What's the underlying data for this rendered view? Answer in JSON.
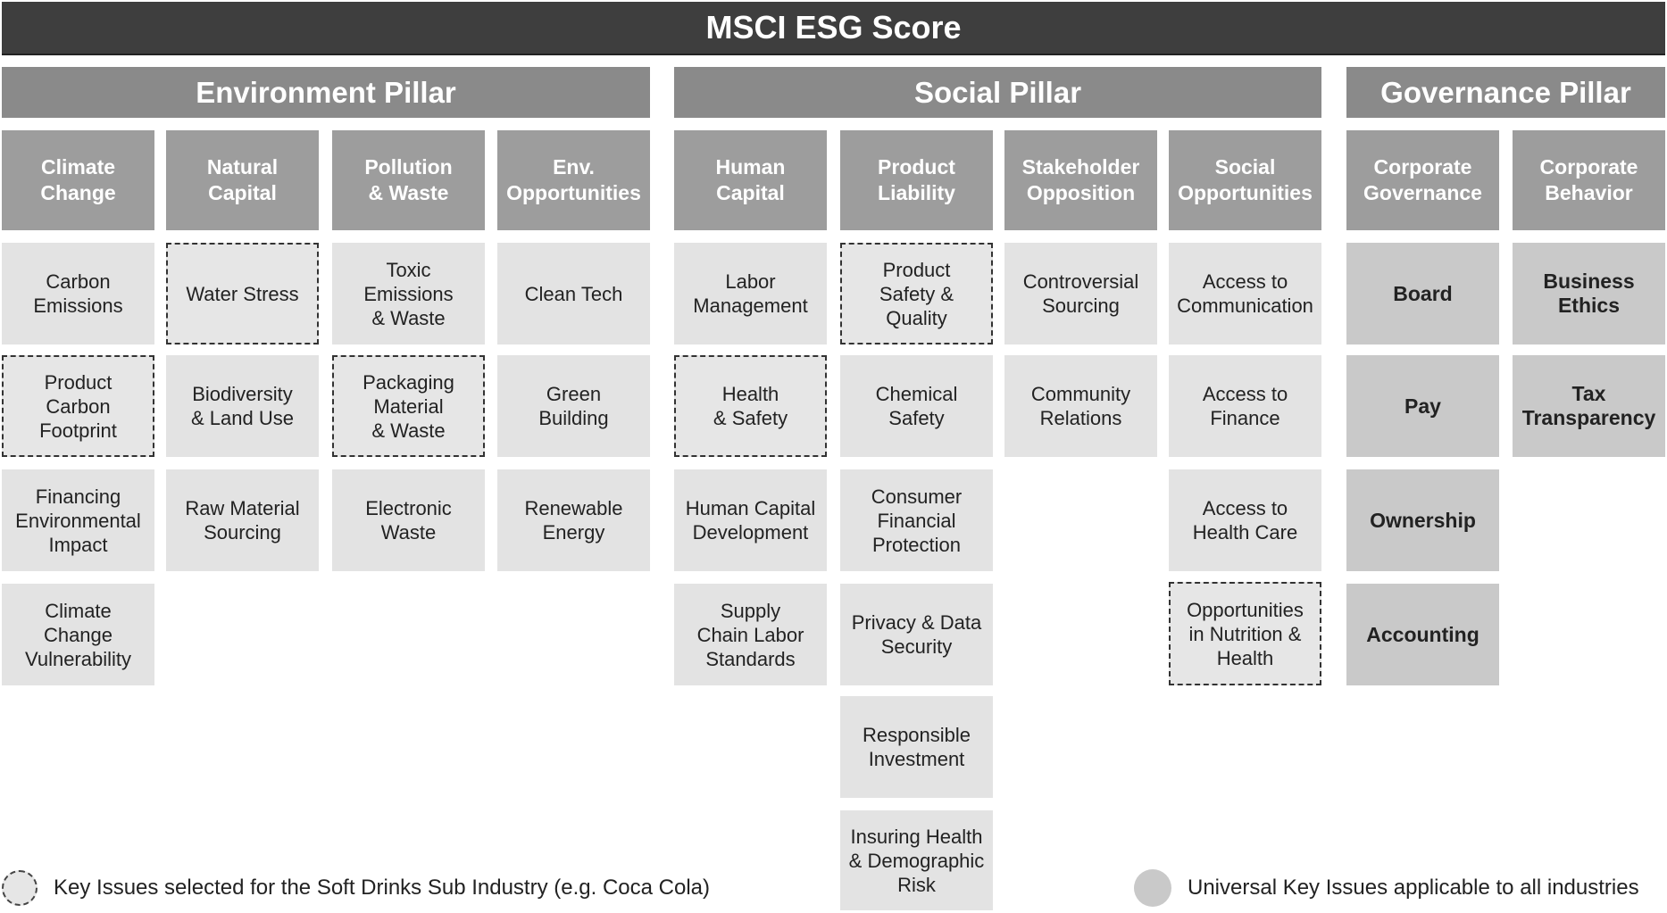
{
  "title": "MSCI ESG Score",
  "pillars": {
    "environment": "Environment Pillar",
    "social": "Social Pillar",
    "governance": "Governance Pillar"
  },
  "themes": {
    "climate_change": "Climate\nChange",
    "natural_capital": "Natural\nCapital",
    "pollution_waste": "Pollution\n& Waste",
    "env_opportunities": "Env.\nOpportunities",
    "human_capital": "Human\nCapital",
    "product_liability": "Product\nLiability",
    "stakeholder_opposition": "Stakeholder\nOpposition",
    "social_opportunities": "Social\nOpportunities",
    "corporate_governance": "Corporate\nGovernance",
    "corporate_behavior": "Corporate\nBehavior"
  },
  "issues": {
    "climate_change": [
      "Carbon\nEmissions",
      "Product\nCarbon\nFootprint",
      "Financing\nEnvironmental\nImpact",
      "Climate\nChange\nVulnerability"
    ],
    "natural_capital": [
      "Water Stress",
      "Biodiversity\n& Land Use",
      "Raw Material\nSourcing"
    ],
    "pollution_waste": [
      "Toxic\nEmissions\n& Waste",
      "Packaging\nMaterial\n& Waste",
      "Electronic\nWaste"
    ],
    "env_opportunities": [
      "Clean Tech",
      "Green\nBuilding",
      "Renewable\nEnergy"
    ],
    "human_capital": [
      "Labor\nManagement",
      "Health\n& Safety",
      "Human Capital\nDevelopment",
      "Supply\nChain Labor\nStandards"
    ],
    "product_liability": [
      "Product\nSafety &\nQuality",
      "Chemical\nSafety",
      "Consumer\nFinancial\nProtection",
      "Privacy  & Data\nSecurity",
      "Responsible\nInvestment",
      "Insuring Health\n& Demographic\nRisk"
    ],
    "stakeholder_opposition": [
      "Controversial\nSourcing",
      "Community\nRelations"
    ],
    "social_opportunities": [
      "Access to\nCommunication",
      "Access to\nFinance",
      "Access to\nHealth Care",
      "Opportunities\nin Nutrition &\nHealth"
    ],
    "corporate_governance": [
      "Board",
      "Pay",
      "Ownership",
      "Accounting"
    ],
    "corporate_behavior": [
      "Business\nEthics",
      "Tax\nTransparency"
    ]
  },
  "legend": {
    "dashed_label": "Key Issues selected for the Soft Drinks Sub Industry (e.g. Coca Cola)",
    "solid_label": "Universal Key Issues applicable to all industries"
  }
}
